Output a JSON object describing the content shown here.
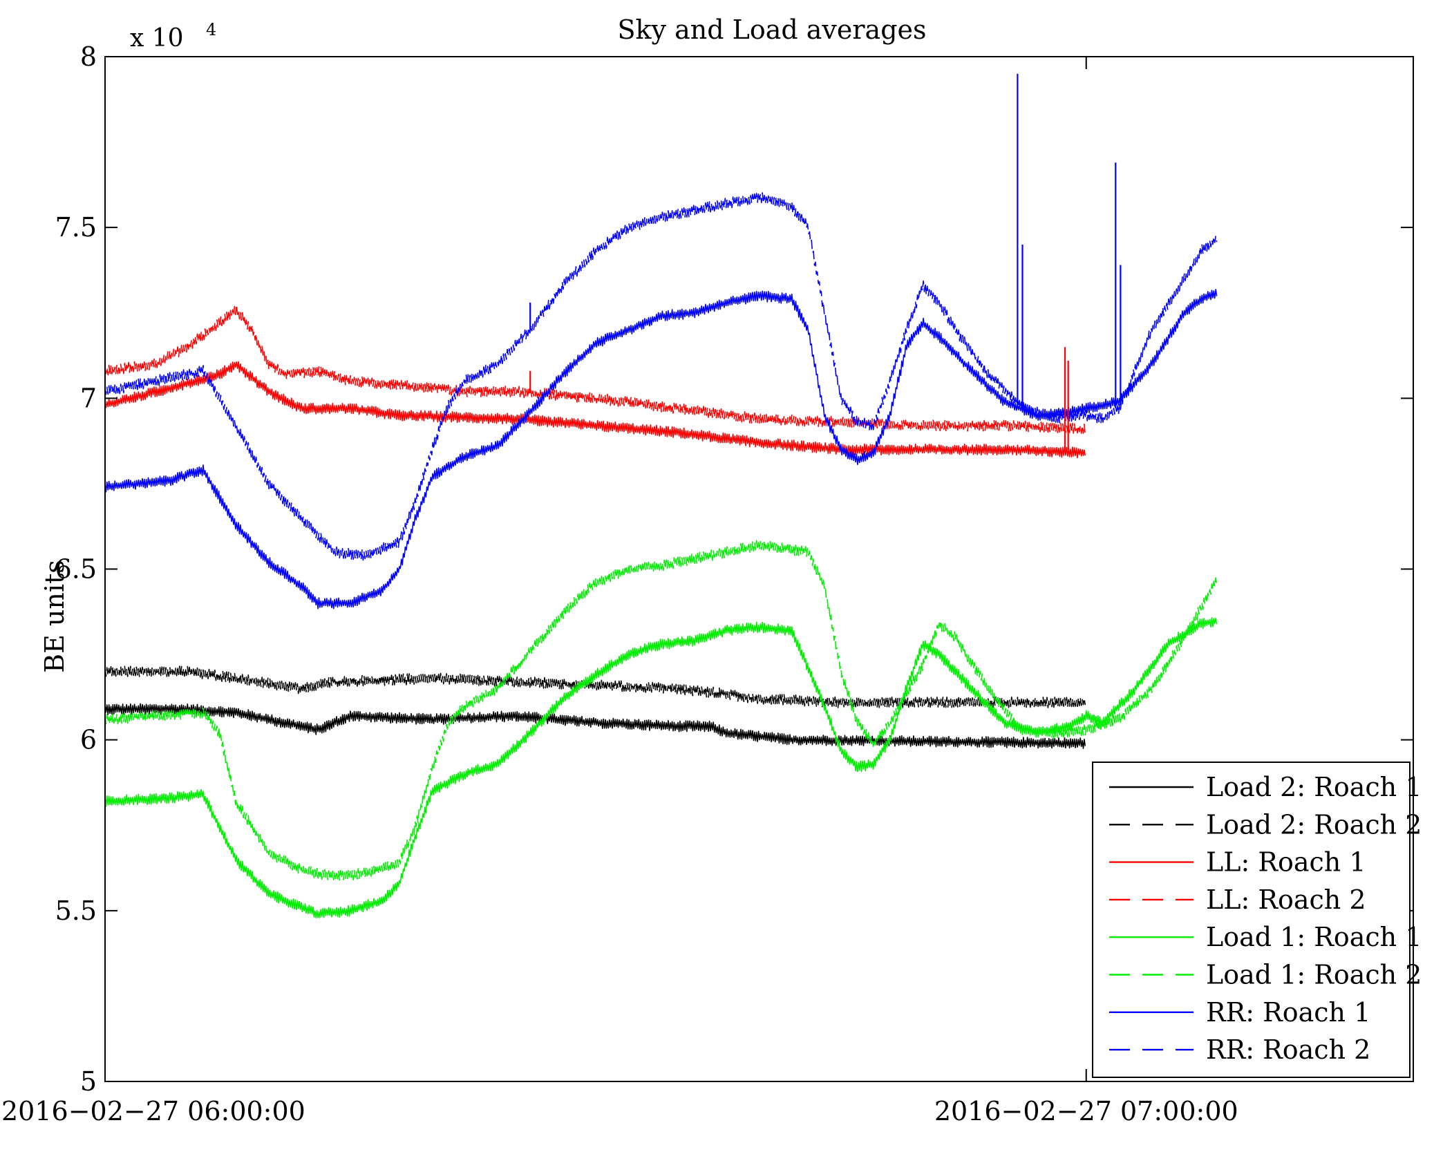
{
  "chart_data": {
    "type": "line",
    "title": "Sky and Load averages",
    "xlabel": "",
    "ylabel": "BE units",
    "y_multiplier_base": "x 10",
    "y_multiplier_exponent": "4",
    "xlim": [
      0,
      80
    ],
    "ylim": [
      5,
      8
    ],
    "x_unit": "minutes after 2016-02-27 06:00:00",
    "x_ticks": [
      {
        "value": 0,
        "label": "2016−02−27 06:00:00"
      },
      {
        "value": 60,
        "label": "2016−02−27 07:00:00"
      }
    ],
    "y_ticks": [
      {
        "value": 5,
        "label": "5"
      },
      {
        "value": 5.5,
        "label": "5.5"
      },
      {
        "value": 6,
        "label": "6"
      },
      {
        "value": 6.5,
        "label": "6.5"
      },
      {
        "value": 7,
        "label": "7"
      },
      {
        "value": 7.5,
        "label": "7.5"
      },
      {
        "value": 8,
        "label": "8"
      }
    ],
    "grid": false,
    "legend_position": "bottom-right",
    "series": [
      {
        "name": "Load 2: Roach 1",
        "color": "#000000",
        "dash": "solid",
        "points": [
          [
            0,
            6.09
          ],
          [
            5,
            6.09
          ],
          [
            8,
            6.08
          ],
          [
            12,
            6.04
          ],
          [
            13,
            6.03
          ],
          [
            15,
            6.07
          ],
          [
            20,
            6.06
          ],
          [
            25,
            6.07
          ],
          [
            30,
            6.05
          ],
          [
            35,
            6.04
          ],
          [
            37,
            6.04
          ],
          [
            38,
            6.02
          ],
          [
            40,
            6.01
          ],
          [
            42,
            6.0
          ],
          [
            60,
            5.99
          ]
        ]
      },
      {
        "name": "Load 2: Roach 2",
        "color": "#000000",
        "dash": "dashed",
        "points": [
          [
            0,
            6.2
          ],
          [
            5,
            6.2
          ],
          [
            8,
            6.18
          ],
          [
            12,
            6.15
          ],
          [
            14,
            6.17
          ],
          [
            20,
            6.18
          ],
          [
            25,
            6.17
          ],
          [
            30,
            6.16
          ],
          [
            35,
            6.15
          ],
          [
            37,
            6.14
          ],
          [
            40,
            6.12
          ],
          [
            45,
            6.11
          ],
          [
            50,
            6.11
          ],
          [
            60,
            6.11
          ]
        ]
      },
      {
        "name": "LL: Roach 1",
        "color": "#ff0000",
        "dash": "solid",
        "points": [
          [
            0,
            6.98
          ],
          [
            4,
            7.03
          ],
          [
            7,
            7.07
          ],
          [
            8,
            7.1
          ],
          [
            9,
            7.06
          ],
          [
            10,
            7.02
          ],
          [
            12,
            6.97
          ],
          [
            15,
            6.97
          ],
          [
            18,
            6.95
          ],
          [
            25,
            6.94
          ],
          [
            30,
            6.92
          ],
          [
            35,
            6.9
          ],
          [
            40,
            6.87
          ],
          [
            45,
            6.85
          ],
          [
            50,
            6.85
          ],
          [
            55,
            6.85
          ],
          [
            60,
            6.84
          ]
        ]
      },
      {
        "name": "LL: Roach 2",
        "color": "#ff0000",
        "dash": "dashed",
        "points": [
          [
            0,
            7.08
          ],
          [
            3,
            7.1
          ],
          [
            5,
            7.15
          ],
          [
            7,
            7.22
          ],
          [
            8,
            7.26
          ],
          [
            9,
            7.2
          ],
          [
            10,
            7.1
          ],
          [
            11,
            7.07
          ],
          [
            13,
            7.08
          ],
          [
            15,
            7.05
          ],
          [
            18,
            7.04
          ],
          [
            22,
            7.02
          ],
          [
            25,
            7.02
          ],
          [
            30,
            7.0
          ],
          [
            35,
            6.97
          ],
          [
            40,
            6.94
          ],
          [
            45,
            6.93
          ],
          [
            50,
            6.92
          ],
          [
            55,
            6.92
          ],
          [
            60,
            6.91
          ]
        ]
      },
      {
        "name": "Load 1: Roach 1",
        "color": "#00ee00",
        "dash": "solid",
        "points": [
          [
            0,
            5.82
          ],
          [
            4,
            5.83
          ],
          [
            6,
            5.84
          ],
          [
            8,
            5.65
          ],
          [
            10,
            5.55
          ],
          [
            12,
            5.51
          ],
          [
            13,
            5.49
          ],
          [
            15,
            5.5
          ],
          [
            17,
            5.53
          ],
          [
            18,
            5.58
          ],
          [
            19,
            5.72
          ],
          [
            20,
            5.85
          ],
          [
            22,
            5.9
          ],
          [
            24,
            5.93
          ],
          [
            26,
            6.02
          ],
          [
            28,
            6.12
          ],
          [
            30,
            6.19
          ],
          [
            32,
            6.25
          ],
          [
            34,
            6.28
          ],
          [
            36,
            6.29
          ],
          [
            38,
            6.32
          ],
          [
            40,
            6.33
          ],
          [
            42,
            6.32
          ],
          [
            44,
            6.1
          ],
          [
            45,
            5.97
          ],
          [
            46,
            5.92
          ],
          [
            47,
            5.93
          ],
          [
            48,
            6.0
          ],
          [
            49,
            6.15
          ],
          [
            50,
            6.28
          ],
          [
            51,
            6.25
          ],
          [
            52,
            6.2
          ],
          [
            53,
            6.15
          ],
          [
            55,
            6.05
          ],
          [
            57,
            6.02
          ],
          [
            59,
            6.04
          ],
          [
            60,
            6.07
          ],
          [
            61,
            6.05
          ],
          [
            63,
            6.15
          ],
          [
            65,
            6.28
          ],
          [
            67,
            6.34
          ],
          [
            68,
            6.35
          ]
        ]
      },
      {
        "name": "Load 1: Roach 2",
        "color": "#00ee00",
        "dash": "dashed",
        "points": [
          [
            0,
            6.06
          ],
          [
            3,
            6.07
          ],
          [
            6,
            6.08
          ],
          [
            7,
            6.02
          ],
          [
            8,
            5.82
          ],
          [
            10,
            5.67
          ],
          [
            12,
            5.62
          ],
          [
            14,
            5.6
          ],
          [
            16,
            5.61
          ],
          [
            18,
            5.64
          ],
          [
            19,
            5.75
          ],
          [
            20,
            5.92
          ],
          [
            21,
            6.05
          ],
          [
            22,
            6.1
          ],
          [
            24,
            6.15
          ],
          [
            26,
            6.26
          ],
          [
            28,
            6.37
          ],
          [
            30,
            6.46
          ],
          [
            32,
            6.5
          ],
          [
            34,
            6.51
          ],
          [
            36,
            6.53
          ],
          [
            38,
            6.55
          ],
          [
            40,
            6.57
          ],
          [
            43,
            6.55
          ],
          [
            44,
            6.45
          ],
          [
            45,
            6.2
          ],
          [
            46,
            6.05
          ],
          [
            47,
            5.99
          ],
          [
            48,
            6.05
          ],
          [
            50,
            6.22
          ],
          [
            51,
            6.34
          ],
          [
            52,
            6.3
          ],
          [
            54,
            6.15
          ],
          [
            56,
            6.03
          ],
          [
            58,
            6.02
          ],
          [
            60,
            6.03
          ],
          [
            62,
            6.06
          ],
          [
            64,
            6.15
          ],
          [
            66,
            6.3
          ],
          [
            68,
            6.47
          ]
        ]
      },
      {
        "name": "RR: Roach 1",
        "color": "#0000ff",
        "dash": "solid",
        "points": [
          [
            0,
            6.74
          ],
          [
            4,
            6.76
          ],
          [
            6,
            6.79
          ],
          [
            8,
            6.63
          ],
          [
            10,
            6.52
          ],
          [
            12,
            6.45
          ],
          [
            13,
            6.4
          ],
          [
            15,
            6.4
          ],
          [
            17,
            6.44
          ],
          [
            18,
            6.5
          ],
          [
            19,
            6.65
          ],
          [
            20,
            6.77
          ],
          [
            22,
            6.83
          ],
          [
            24,
            6.86
          ],
          [
            26,
            6.96
          ],
          [
            28,
            7.07
          ],
          [
            30,
            7.16
          ],
          [
            32,
            7.2
          ],
          [
            34,
            7.24
          ],
          [
            36,
            7.25
          ],
          [
            38,
            7.28
          ],
          [
            40,
            7.3
          ],
          [
            42,
            7.29
          ],
          [
            43,
            7.2
          ],
          [
            44,
            6.95
          ],
          [
            45,
            6.85
          ],
          [
            46,
            6.82
          ],
          [
            47,
            6.84
          ],
          [
            48,
            6.95
          ],
          [
            49,
            7.15
          ],
          [
            50,
            7.22
          ],
          [
            51,
            7.18
          ],
          [
            53,
            7.08
          ],
          [
            55,
            6.99
          ],
          [
            57,
            6.95
          ],
          [
            59,
            6.96
          ],
          [
            61,
            6.98
          ],
          [
            62,
            6.99
          ],
          [
            64,
            7.1
          ],
          [
            66,
            7.25
          ],
          [
            67,
            7.29
          ],
          [
            68,
            7.31
          ]
        ]
      },
      {
        "name": "RR: Roach 2",
        "color": "#0000ff",
        "dash": "dashed",
        "points": [
          [
            0,
            7.02
          ],
          [
            3,
            7.05
          ],
          [
            6,
            7.08
          ],
          [
            8,
            6.92
          ],
          [
            10,
            6.75
          ],
          [
            12,
            6.65
          ],
          [
            14,
            6.55
          ],
          [
            16,
            6.54
          ],
          [
            18,
            6.58
          ],
          [
            19,
            6.7
          ],
          [
            20,
            6.85
          ],
          [
            21,
            6.98
          ],
          [
            22,
            7.05
          ],
          [
            24,
            7.1
          ],
          [
            26,
            7.2
          ],
          [
            28,
            7.33
          ],
          [
            30,
            7.43
          ],
          [
            32,
            7.5
          ],
          [
            34,
            7.53
          ],
          [
            36,
            7.55
          ],
          [
            38,
            7.57
          ],
          [
            40,
            7.59
          ],
          [
            42,
            7.56
          ],
          [
            43,
            7.5
          ],
          [
            44,
            7.25
          ],
          [
            45,
            7.0
          ],
          [
            46,
            6.93
          ],
          [
            47,
            6.92
          ],
          [
            48,
            7.05
          ],
          [
            49,
            7.2
          ],
          [
            50,
            7.33
          ],
          [
            51,
            7.28
          ],
          [
            52,
            7.2
          ],
          [
            54,
            7.07
          ],
          [
            56,
            6.98
          ],
          [
            58,
            6.94
          ],
          [
            60,
            6.95
          ],
          [
            61,
            6.94
          ],
          [
            62,
            6.97
          ],
          [
            64,
            7.2
          ],
          [
            66,
            7.35
          ],
          [
            67,
            7.43
          ],
          [
            68,
            7.47
          ]
        ]
      }
    ],
    "spikes": [
      {
        "series": "RR: Roach 1",
        "x": 55.8,
        "base": 6.97,
        "top": 7.95
      },
      {
        "series": "RR: Roach 1",
        "x": 56.1,
        "base": 6.97,
        "top": 7.45
      },
      {
        "series": "RR: Roach 1",
        "x": 61.8,
        "base": 6.98,
        "top": 7.69
      },
      {
        "series": "RR: Roach 1",
        "x": 62.1,
        "base": 6.98,
        "top": 7.39
      },
      {
        "series": "RR: Roach 2",
        "x": 26.0,
        "base": 7.2,
        "top": 7.28
      },
      {
        "series": "LL: Roach 1",
        "x": 58.7,
        "base": 6.85,
        "top": 7.15
      },
      {
        "series": "LL: Roach 1",
        "x": 58.9,
        "base": 6.85,
        "top": 7.11
      },
      {
        "series": "LL: Roach 2",
        "x": 26.0,
        "base": 7.02,
        "top": 7.08
      }
    ]
  }
}
